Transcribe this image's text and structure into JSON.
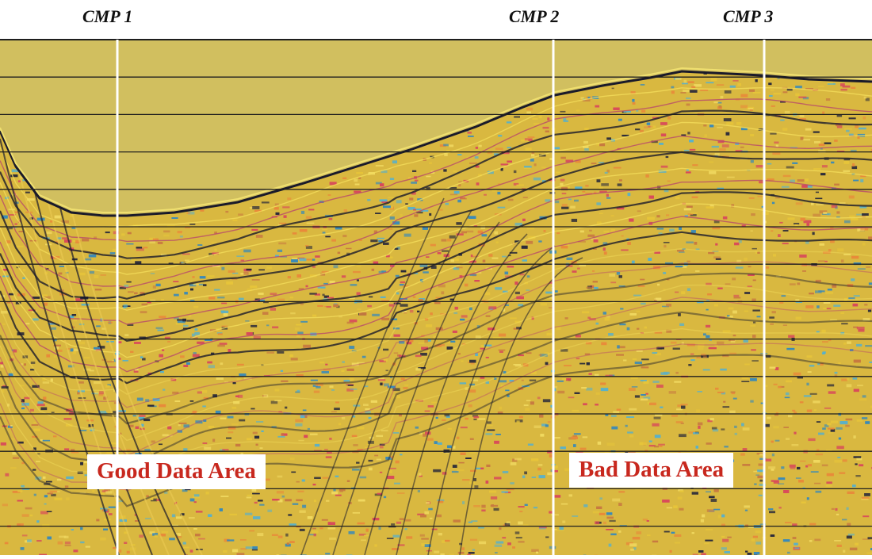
{
  "cmp_markers": [
    {
      "label": "CMP 1"
    },
    {
      "label": "CMP 2"
    },
    {
      "label": "CMP 3"
    }
  ],
  "area_labels": {
    "good": "Good Data Area",
    "bad": "Bad Data Area"
  },
  "colors": {
    "water": "#d1bf5f",
    "sediment_base": "#d9b840",
    "reflector_dark": "#1a1a2a",
    "noise": [
      "#e6c43a",
      "#e88a3a",
      "#d84a5a",
      "#3a8ab8",
      "#5ab0c8",
      "#2a2a3a",
      "#f0d860",
      "#c87a40"
    ],
    "grid_line": "#1e1e1e",
    "cmp_line": "#ffffff",
    "label_text": "#c8281e"
  }
}
